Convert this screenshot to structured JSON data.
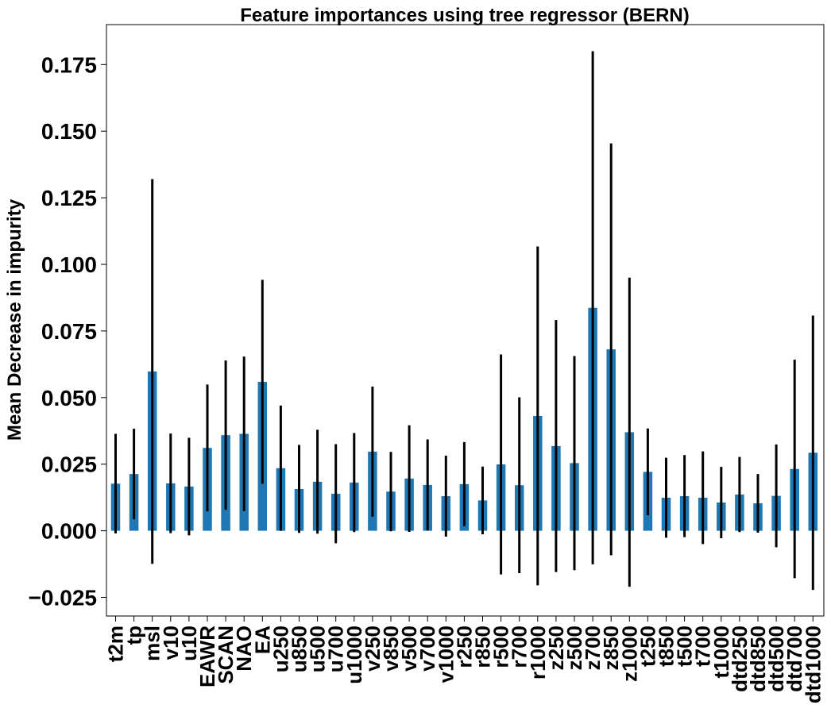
{
  "chart_data": {
    "type": "bar",
    "title": "Feature importances using tree regressor (BERN)",
    "xlabel": "",
    "ylabel": "Mean Decrease in impurity",
    "ylim": [
      -0.032,
      0.19
    ],
    "yticks": [
      -0.025,
      0.0,
      0.025,
      0.05,
      0.075,
      0.1,
      0.125,
      0.15,
      0.175
    ],
    "ytick_labels": [
      "−0.025",
      "0.000",
      "0.025",
      "0.050",
      "0.075",
      "0.100",
      "0.125",
      "0.150",
      "0.175"
    ],
    "grid": false,
    "bar_color": "#1f77b4",
    "error_color": "#000000",
    "categories": [
      "t2m",
      "tp",
      "msl",
      "v10",
      "u10",
      "EAWR",
      "SCAN",
      "NAO",
      "EA",
      "u250",
      "u850",
      "u500",
      "u700",
      "u1000",
      "v250",
      "v850",
      "v500",
      "v700",
      "v1000",
      "r250",
      "r850",
      "r500",
      "r700",
      "r1000",
      "z250",
      "z500",
      "z700",
      "z850",
      "z1000",
      "t250",
      "t850",
      "t500",
      "t700",
      "t1000",
      "dtd250",
      "dtd850",
      "dtd500",
      "dtd700",
      "dtd1000"
    ],
    "values": [
      0.0177,
      0.0213,
      0.0598,
      0.0178,
      0.0166,
      0.0311,
      0.0359,
      0.0364,
      0.0559,
      0.0235,
      0.0157,
      0.0184,
      0.0139,
      0.0181,
      0.0297,
      0.0147,
      0.0196,
      0.0172,
      0.013,
      0.0175,
      0.0114,
      0.0249,
      0.0171,
      0.0431,
      0.0318,
      0.0254,
      0.0837,
      0.0681,
      0.037,
      0.0221,
      0.0124,
      0.013,
      0.0124,
      0.0106,
      0.0136,
      0.0103,
      0.0131,
      0.0232,
      0.0293
    ],
    "errors": [
      0.0187,
      0.017,
      0.0722,
      0.0187,
      0.0183,
      0.0238,
      0.028,
      0.029,
      0.0383,
      0.0235,
      0.0165,
      0.0195,
      0.0186,
      0.0186,
      0.0244,
      0.0149,
      0.02,
      0.0171,
      0.0152,
      0.0158,
      0.0127,
      0.0413,
      0.033,
      0.0636,
      0.0473,
      0.0402,
      0.0963,
      0.0773,
      0.058,
      0.0163,
      0.015,
      0.0154,
      0.0174,
      0.0134,
      0.0141,
      0.011,
      0.0193,
      0.041,
      0.0515
    ]
  }
}
